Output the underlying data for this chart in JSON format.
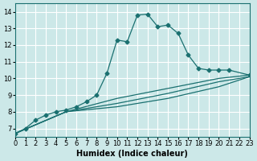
{
  "xlabel": "Humidex (Indice chaleur)",
  "ylabel": "",
  "bg_color": "#cce8e8",
  "grid_color": "#ffffff",
  "line_color": "#1a7070",
  "xlim": [
    0,
    23
  ],
  "ylim": [
    6.5,
    14.5
  ],
  "xticks": [
    0,
    1,
    2,
    3,
    4,
    5,
    6,
    7,
    8,
    9,
    10,
    11,
    12,
    13,
    14,
    15,
    16,
    17,
    18,
    19,
    20,
    21,
    22,
    23
  ],
  "yticks": [
    7,
    8,
    9,
    10,
    11,
    12,
    13,
    14
  ],
  "series": [
    {
      "x": [
        0,
        1,
        2,
        3,
        4,
        5,
        6,
        7,
        8,
        9,
        10,
        11,
        12,
        13,
        14,
        15,
        16,
        17,
        18,
        19,
        20,
        21,
        23
      ],
      "y": [
        6.7,
        7.0,
        7.5,
        7.8,
        8.0,
        8.1,
        8.3,
        8.6,
        9.0,
        10.3,
        12.3,
        12.2,
        13.8,
        13.85,
        13.1,
        13.2,
        12.7,
        11.4,
        10.6,
        10.5,
        10.5,
        10.5,
        10.2
      ],
      "marker": true,
      "linestyle": "-"
    },
    {
      "x": [
        0,
        5,
        10,
        15,
        20,
        23
      ],
      "y": [
        6.7,
        8.0,
        8.8,
        9.4,
        10.0,
        10.2
      ],
      "marker": false,
      "linestyle": "-"
    },
    {
      "x": [
        0,
        5,
        10,
        15,
        20,
        23
      ],
      "y": [
        6.7,
        8.0,
        8.5,
        9.1,
        9.8,
        10.1
      ],
      "marker": false,
      "linestyle": "-"
    },
    {
      "x": [
        0,
        5,
        10,
        15,
        20,
        23
      ],
      "y": [
        6.7,
        8.0,
        8.3,
        8.8,
        9.5,
        10.1
      ],
      "marker": false,
      "linestyle": "-"
    }
  ]
}
